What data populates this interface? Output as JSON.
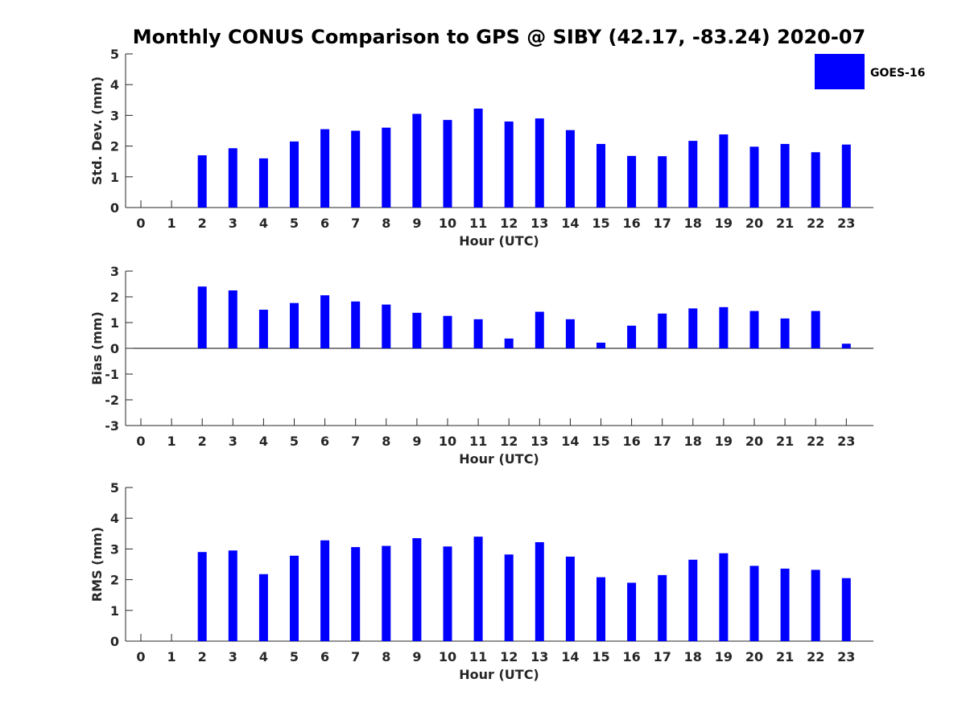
{
  "figure": {
    "title": "Monthly CONUS Comparison to GPS @ SIBY (42.17, -83.24) 2020-07",
    "legend": {
      "label": "GOES-16",
      "color": "#0000ff",
      "placement": "top-right"
    }
  },
  "chart_data": [
    {
      "type": "bar",
      "xlabel": "Hour (UTC)",
      "ylabel": "Std. Dev. (mm)",
      "ylim": [
        0,
        5
      ],
      "yticks": [
        0,
        1,
        2,
        3,
        4,
        5
      ],
      "categories": [
        "0",
        "1",
        "2",
        "3",
        "4",
        "5",
        "6",
        "7",
        "8",
        "9",
        "10",
        "11",
        "12",
        "13",
        "14",
        "15",
        "16",
        "17",
        "18",
        "19",
        "20",
        "21",
        "22",
        "23"
      ],
      "series": [
        {
          "name": "GOES-16",
          "values": [
            null,
            null,
            1.7,
            1.93,
            1.6,
            2.15,
            2.55,
            2.5,
            2.6,
            3.05,
            2.85,
            3.22,
            2.8,
            2.9,
            2.52,
            2.07,
            1.68,
            1.67,
            2.17,
            2.38,
            1.98,
            2.07,
            1.8,
            2.05
          ]
        }
      ]
    },
    {
      "type": "bar",
      "xlabel": "Hour (UTC)",
      "ylabel": "Bias (mm)",
      "ylim": [
        -3,
        3
      ],
      "yticks": [
        -3,
        -2,
        -1,
        0,
        1,
        2,
        3
      ],
      "categories": [
        "0",
        "1",
        "2",
        "3",
        "4",
        "5",
        "6",
        "7",
        "8",
        "9",
        "10",
        "11",
        "12",
        "13",
        "14",
        "15",
        "16",
        "17",
        "18",
        "19",
        "20",
        "21",
        "22",
        "23"
      ],
      "series": [
        {
          "name": "GOES-16",
          "values": [
            null,
            null,
            2.4,
            2.25,
            1.5,
            1.76,
            2.06,
            1.82,
            1.7,
            1.38,
            1.26,
            1.13,
            0.38,
            1.42,
            1.13,
            0.22,
            0.88,
            1.35,
            1.55,
            1.6,
            1.45,
            1.16,
            1.45,
            0.18
          ]
        }
      ]
    },
    {
      "type": "bar",
      "xlabel": "Hour (UTC)",
      "ylabel": "RMS (mm)",
      "ylim": [
        0,
        5
      ],
      "yticks": [
        0,
        1,
        2,
        3,
        4,
        5
      ],
      "categories": [
        "0",
        "1",
        "2",
        "3",
        "4",
        "5",
        "6",
        "7",
        "8",
        "9",
        "10",
        "11",
        "12",
        "13",
        "14",
        "15",
        "16",
        "17",
        "18",
        "19",
        "20",
        "21",
        "22",
        "23"
      ],
      "series": [
        {
          "name": "GOES-16",
          "values": [
            null,
            null,
            2.9,
            2.95,
            2.18,
            2.78,
            3.28,
            3.06,
            3.1,
            3.35,
            3.08,
            3.4,
            2.82,
            3.22,
            2.75,
            2.08,
            1.9,
            2.15,
            2.65,
            2.86,
            2.45,
            2.36,
            2.32,
            2.05
          ]
        }
      ]
    }
  ]
}
